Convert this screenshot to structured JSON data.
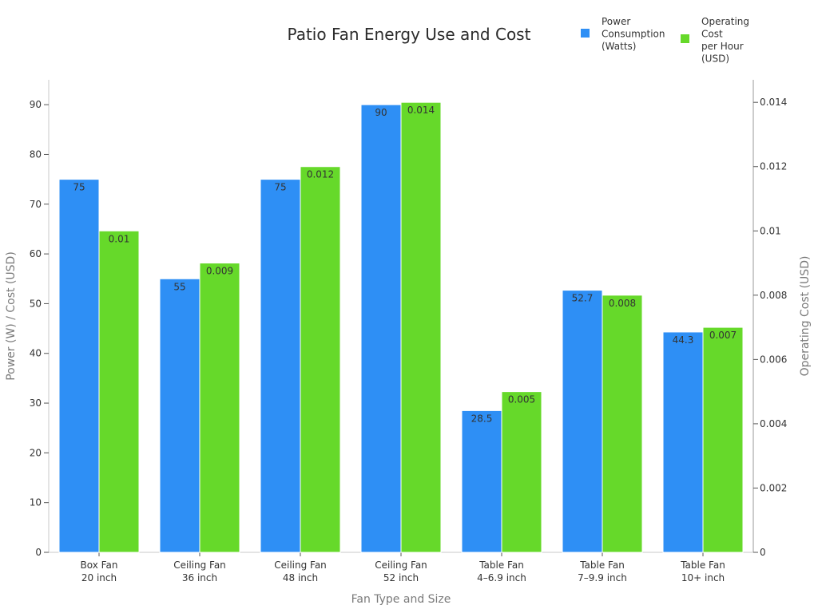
{
  "chart_data": {
    "type": "bar",
    "title": "Patio Fan Energy Use and Cost",
    "xlabel": "Fan Type and Size",
    "ylabel": "Power (W) / Cost (USD)",
    "y2label": "Operating Cost (USD)",
    "categories": [
      [
        "Box Fan",
        "20 inch"
      ],
      [
        "Ceiling Fan",
        "36 inch"
      ],
      [
        "Ceiling Fan",
        "48 inch"
      ],
      [
        "Ceiling Fan",
        "52 inch"
      ],
      [
        "Table Fan",
        "4–6.9 inch"
      ],
      [
        "Table Fan",
        "7–9.9 inch"
      ],
      [
        "Table Fan",
        "10+ inch"
      ]
    ],
    "ylim": [
      0,
      95
    ],
    "y_ticks": [
      "0",
      "10",
      "20",
      "30",
      "40",
      "50",
      "60",
      "70",
      "80",
      "90"
    ],
    "y2lim": [
      0,
      0.0147
    ],
    "y2_ticks": [
      "0",
      "0.002",
      "0.004",
      "0.006",
      "0.008",
      "0.01",
      "0.012",
      "0.014"
    ],
    "grid": false,
    "legend_position": "top-right",
    "series": [
      {
        "name": [
          "Power",
          "Consumption",
          "(Watts)"
        ],
        "axis": "left",
        "color": "#2e8ff5",
        "values": [
          75,
          55,
          75,
          90,
          28.5,
          52.7,
          44.3
        ],
        "labels": [
          "75",
          "55",
          "75",
          "90",
          "28.5",
          "52.7",
          "44.3"
        ]
      },
      {
        "name": [
          "Operating",
          "Cost",
          "per Hour",
          "(USD)"
        ],
        "axis": "right",
        "color": "#66d92a",
        "values": [
          0.01,
          0.009,
          0.012,
          0.014,
          0.005,
          0.008,
          0.007
        ],
        "labels": [
          "0.01",
          "0.009",
          "0.012",
          "0.014",
          "0.005",
          "0.008",
          "0.007"
        ]
      }
    ]
  }
}
